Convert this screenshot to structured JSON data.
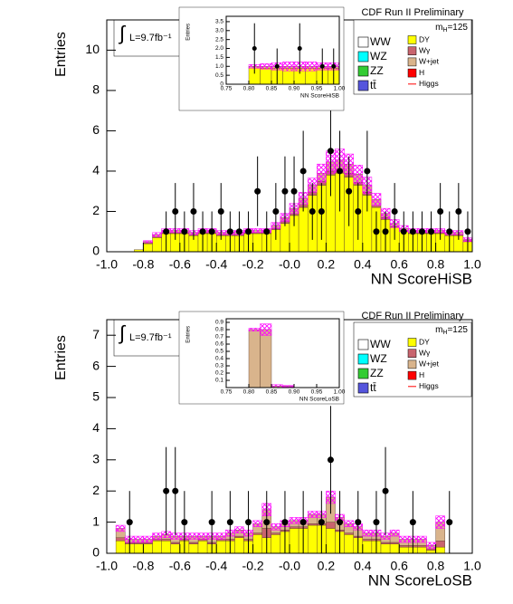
{
  "chart_data": [
    {
      "type": "histogram",
      "header": "CDF Run II Preliminary",
      "integral": "∫",
      "luminosity": "L=9.7fb⁻¹",
      "mass": {
        "symbol": "m",
        "subscript": "H",
        "value": "=125"
      },
      "y_label": "Entries",
      "x_label": "NN ScoreHiSB",
      "xlim": [
        -1,
        1
      ],
      "ylim": [
        0,
        11.5
      ],
      "xticks": [
        {
          "value": -1,
          "label": "-1.0"
        },
        -0.8,
        -0.6,
        -0.4,
        -0.2,
        {
          "value": 0,
          "label": "-0.0"
        },
        0.2,
        0.4,
        0.6,
        0.8,
        {
          "value": 1,
          "label": "1.0"
        }
      ],
      "yticks": [
        0,
        2,
        4,
        6,
        8,
        10
      ],
      "bins": [
        -1,
        -0.95,
        -0.9,
        -0.85,
        -0.8,
        -0.75,
        -0.7,
        -0.65,
        -0.6,
        -0.55,
        -0.5,
        -0.45,
        -0.4,
        -0.35,
        -0.3,
        -0.25,
        -0.2,
        -0.15,
        -0.1,
        -0.05,
        0,
        0.05,
        0.1,
        0.15,
        0.2,
        0.25,
        0.3,
        0.35,
        0.4,
        0.45,
        0.5,
        0.55,
        0.6,
        0.65,
        0.7,
        0.75,
        0.8,
        0.85,
        0.9,
        0.95,
        1
      ],
      "series": [
        {
          "name": "DY",
          "color": "#ffff00",
          "values": [
            0,
            0,
            0,
            0.1,
            0.4,
            0.7,
            0.9,
            0.9,
            0.9,
            0.8,
            0.9,
            0.9,
            0.8,
            0.8,
            0.8,
            0.9,
            0.9,
            0.9,
            1.1,
            1.4,
            1.8,
            2.2,
            2.8,
            3.3,
            3.8,
            3.9,
            3.7,
            3.3,
            2.8,
            2.2,
            1.6,
            1.2,
            1.0,
            0.9,
            0.9,
            0.9,
            0.9,
            0.8,
            0.8,
            0.5
          ]
        },
        {
          "name": "Wγ",
          "color": "#c8646e",
          "values": [
            0,
            0,
            0,
            0,
            0.05,
            0.05,
            0.05,
            0.05,
            0.05,
            0.05,
            0.05,
            0.05,
            0.05,
            0.05,
            0.05,
            0.05,
            0.05,
            0.05,
            0.05,
            0.1,
            0.1,
            0.15,
            0.15,
            0.2,
            0.2,
            0.2,
            0.2,
            0.15,
            0.15,
            0.1,
            0.1,
            0.05,
            0.05,
            0.05,
            0.05,
            0.05,
            0.05,
            0.05,
            0.05,
            0.05
          ]
        },
        {
          "name": "W+jet",
          "color": "#d9b48c",
          "values": [
            0,
            0,
            0,
            0,
            0.05,
            0.1,
            0.1,
            0.1,
            0.1,
            0.1,
            0.1,
            0.1,
            0.1,
            0.1,
            0.1,
            0.1,
            0.1,
            0.1,
            0.15,
            0.2,
            0.25,
            0.3,
            0.35,
            0.4,
            0.45,
            0.45,
            0.45,
            0.4,
            0.35,
            0.3,
            0.2,
            0.15,
            0.1,
            0.1,
            0.1,
            0.1,
            0.1,
            0.1,
            0.1,
            0.05
          ]
        }
      ],
      "uncertainty": [
        0,
        0,
        0,
        0,
        0.05,
        0.1,
        0.1,
        0.1,
        0.1,
        0.1,
        0.1,
        0.1,
        0.1,
        0.1,
        0.1,
        0.1,
        0.1,
        0.1,
        0.15,
        0.2,
        0.25,
        0.3,
        0.35,
        0.45,
        0.55,
        0.55,
        0.5,
        0.45,
        0.4,
        0.3,
        0.25,
        0.2,
        0.15,
        0.1,
        0.1,
        0.1,
        0.1,
        0.1,
        0.1,
        0.1
      ],
      "data": {
        "values": [
          null,
          null,
          null,
          null,
          null,
          null,
          1,
          2,
          1,
          2,
          1,
          1,
          2,
          1,
          1,
          1,
          3,
          1,
          2,
          3,
          3,
          4,
          2,
          2,
          5,
          4,
          3,
          2,
          4,
          1,
          1,
          2,
          1,
          1,
          1,
          1,
          2,
          1,
          2,
          1
        ],
        "errors": [
          null,
          null,
          null,
          null,
          null,
          null,
          1,
          1.41,
          1,
          1.41,
          1,
          1,
          1.41,
          1,
          1,
          1,
          1.73,
          1,
          1.41,
          1.73,
          1.73,
          2,
          1.41,
          1.41,
          2.24,
          2,
          1.73,
          1.41,
          2,
          1,
          1,
          1.41,
          1,
          1,
          1,
          1,
          1.41,
          1,
          1.41,
          1
        ]
      },
      "legend": [
        {
          "name": "WW",
          "color": "#ffffff"
        },
        {
          "name": "WZ",
          "color": "#00ffff"
        },
        {
          "name": "ZZ",
          "color": "#33cc33"
        },
        {
          "name": "tt̄",
          "color": "#5555dd"
        },
        {
          "name": "H",
          "color": "#ff0000"
        },
        {
          "name": "Higgs",
          "color": "#ff0000",
          "style": "line"
        }
      ]
    },
    {
      "type": "histogram",
      "y_label": "Entries",
      "x_label": "NN ScoreHiSB",
      "xlim": [
        0.75,
        1
      ],
      "ylim": [
        0,
        3.8
      ],
      "xticks": [
        0.75,
        {
          "value": 0.8,
          "label": "0.80"
        },
        0.85,
        {
          "value": 0.9,
          "label": "0.90"
        },
        0.95,
        {
          "value": 1,
          "label": "1.00"
        }
      ],
      "yticks": [
        0,
        0.5,
        {
          "value": 1,
          "label": "1.0"
        },
        1.5,
        {
          "value": 2,
          "label": "2.0"
        },
        2.5,
        {
          "value": 3,
          "label": "3.0"
        },
        3.5
      ],
      "bins": [
        0.75,
        0.775,
        0.8,
        0.825,
        0.85,
        0.875,
        0.9,
        0.925,
        0.95,
        0.975,
        1
      ],
      "series": [
        {
          "color": "#ffff00",
          "values": [
            0,
            0,
            0.9,
            0.9,
            0.9,
            0.9,
            0.9,
            0.9,
            0.9,
            0.9
          ]
        },
        {
          "color": "#d9b48c",
          "values": [
            0,
            0,
            0.1,
            0.1,
            0.1,
            0.1,
            0.1,
            0.1,
            0.1,
            0.1
          ]
        }
      ],
      "uncertainty": [
        0,
        0,
        0.1,
        0.15,
        0.2,
        0.25,
        0.25,
        0.25,
        0.2,
        0.2
      ],
      "data": {
        "values": [
          null,
          null,
          2,
          null,
          1,
          null,
          2,
          null,
          1,
          1
        ],
        "errors": [
          null,
          null,
          1.41,
          null,
          1,
          null,
          1.41,
          null,
          1,
          1
        ]
      }
    },
    {
      "type": "histogram",
      "header": "CDF Run II Preliminary",
      "integral": "∫",
      "luminosity": "L=9.7fb⁻¹",
      "mass": {
        "symbol": "m",
        "subscript": "H",
        "value": "=125"
      },
      "y_label": "Entries",
      "x_label": "NN ScoreLoSB",
      "xlim": [
        -1,
        1
      ],
      "ylim": [
        0,
        7.5
      ],
      "xticks": [
        {
          "value": -1,
          "label": "-1.0"
        },
        -0.8,
        -0.6,
        -0.4,
        -0.2,
        {
          "value": 0,
          "label": "-0.0"
        },
        0.2,
        0.4,
        0.6,
        0.8,
        {
          "value": 1,
          "label": "1.0"
        }
      ],
      "yticks": [
        0,
        1,
        2,
        3,
        4,
        5,
        6,
        7
      ],
      "bins": [
        -1,
        -0.95,
        -0.9,
        -0.85,
        -0.8,
        -0.75,
        -0.7,
        -0.65,
        -0.6,
        -0.55,
        -0.5,
        -0.45,
        -0.4,
        -0.35,
        -0.3,
        -0.25,
        -0.2,
        -0.15,
        -0.1,
        -0.05,
        0,
        0.05,
        0.1,
        0.15,
        0.2,
        0.25,
        0.3,
        0.35,
        0.4,
        0.45,
        0.5,
        0.55,
        0.6,
        0.65,
        0.7,
        0.75,
        0.8,
        0.85,
        0.9,
        0.95,
        1
      ],
      "series": [
        {
          "name": "DY",
          "color": "#ffff00",
          "values": [
            0,
            0.4,
            0.3,
            0.3,
            0.3,
            0.4,
            0.4,
            0.3,
            0.4,
            0.3,
            0.4,
            0.3,
            0.4,
            0.4,
            0.5,
            0.4,
            0.6,
            0.5,
            0.6,
            0.7,
            0.8,
            0.8,
            0.9,
            0.9,
            0.8,
            0.7,
            0.6,
            0.5,
            0.4,
            0.4,
            0.3,
            0.3,
            0.2,
            0.2,
            0.2,
            0.1,
            0.2,
            0,
            0,
            0
          ]
        },
        {
          "name": "Wγ",
          "color": "#c8646e",
          "values": [
            0,
            0.1,
            0.05,
            0.05,
            0.05,
            0.05,
            0.05,
            0.05,
            0.05,
            0.05,
            0.05,
            0.05,
            0.05,
            0.05,
            0.05,
            0.05,
            0.05,
            0.3,
            0.05,
            0.05,
            0.05,
            0.05,
            0.05,
            0.05,
            0.2,
            0.05,
            0.05,
            0.05,
            0.05,
            0.05,
            0.05,
            0.05,
            0.05,
            0.05,
            0.05,
            0.05,
            0.2,
            0,
            0,
            0
          ]
        },
        {
          "name": "W+jet",
          "color": "#d9b48c",
          "values": [
            0,
            0.3,
            0.1,
            0.1,
            0.1,
            0.1,
            0.15,
            0.2,
            0.1,
            0.2,
            0.1,
            0.2,
            0.1,
            0.2,
            0.2,
            0.2,
            0.3,
            0.6,
            0.2,
            0.2,
            0.2,
            0.2,
            0.3,
            0.3,
            0.8,
            0.4,
            0.3,
            0.3,
            0.2,
            0.2,
            0.2,
            0.3,
            0.2,
            0.2,
            0.2,
            0.1,
            0.6,
            0,
            0,
            0
          ]
        }
      ],
      "uncertainty": [
        0,
        0.1,
        0.1,
        0.1,
        0.1,
        0.1,
        0.1,
        0.1,
        0.1,
        0.1,
        0.1,
        0.1,
        0.1,
        0.1,
        0.1,
        0.1,
        0.1,
        0.2,
        0.1,
        0.1,
        0.1,
        0.1,
        0.1,
        0.1,
        0.2,
        0.1,
        0.1,
        0.1,
        0.1,
        0.1,
        0.1,
        0.1,
        0.1,
        0.1,
        0.1,
        0.1,
        0.2,
        0,
        0,
        0
      ],
      "data": {
        "values": [
          null,
          null,
          1,
          null,
          null,
          null,
          2,
          2,
          1,
          null,
          null,
          1,
          null,
          1,
          null,
          1,
          null,
          1,
          null,
          1,
          null,
          1,
          null,
          1,
          3,
          1,
          null,
          1,
          null,
          1,
          2,
          null,
          null,
          1,
          null,
          null,
          null,
          1,
          null,
          null
        ],
        "errors": [
          null,
          null,
          1,
          null,
          null,
          null,
          1.41,
          1.41,
          1,
          null,
          null,
          1,
          null,
          1,
          null,
          1,
          null,
          1,
          null,
          1,
          null,
          1,
          null,
          1,
          1.73,
          1,
          null,
          1,
          null,
          1,
          1.41,
          null,
          null,
          1,
          null,
          null,
          null,
          1,
          null,
          null
        ]
      },
      "legend": [
        {
          "name": "WW",
          "color": "#ffffff"
        },
        {
          "name": "WZ",
          "color": "#00ffff"
        },
        {
          "name": "ZZ",
          "color": "#33cc33"
        },
        {
          "name": "tt̄",
          "color": "#5555dd"
        },
        {
          "name": "H",
          "color": "#ff0000"
        },
        {
          "name": "Higgs",
          "color": "#ff0000",
          "style": "line"
        }
      ]
    },
    {
      "type": "histogram",
      "y_label": "Entries",
      "x_label": "NN ScoreLoSB",
      "xlim": [
        0.75,
        1
      ],
      "ylim": [
        0,
        0.95
      ],
      "xticks": [
        0.75,
        {
          "value": 0.8,
          "label": "0.80"
        },
        0.85,
        {
          "value": 0.9,
          "label": "0.90"
        },
        0.95,
        {
          "value": 1,
          "label": "1.00"
        }
      ],
      "yticks": [
        0.1,
        0.2,
        0.3,
        0.4,
        0.5,
        0.6,
        0.7,
        0.8,
        0.9
      ],
      "bins": [
        0.75,
        0.775,
        0.8,
        0.825,
        0.85,
        0.875,
        0.9,
        0.925,
        0.95,
        0.975,
        1
      ],
      "series": [
        {
          "color": "#d9b48c",
          "values": [
            0,
            0,
            0.8,
            0.8,
            0.02,
            0.02,
            0,
            0,
            0,
            0
          ]
        }
      ],
      "uncertainty": [
        0,
        0,
        0.02,
        0.08,
        0.02,
        0.01,
        0,
        0,
        0,
        0
      ]
    }
  ]
}
